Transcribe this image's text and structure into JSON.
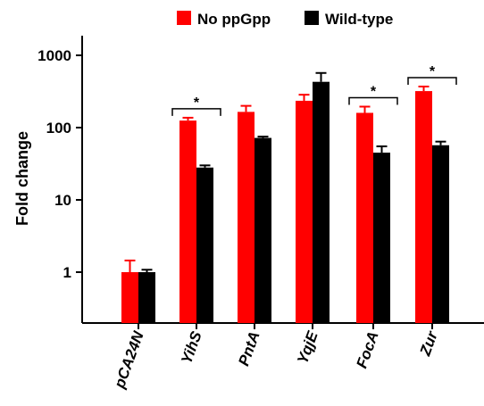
{
  "chart_data": {
    "type": "bar",
    "ylabel": "Fold change",
    "xlabel": "",
    "yscale": "log",
    "ylim": [
      0.2,
      2500
    ],
    "yticks": [
      {
        "value": 1,
        "label": "1"
      },
      {
        "value": 10,
        "label": "10"
      },
      {
        "value": 100,
        "label": "100"
      },
      {
        "value": 1000,
        "label": "1000"
      }
    ],
    "categories": [
      "pCA24N",
      "YihS",
      "PntA",
      "YqjE",
      "FocA",
      "Zur"
    ],
    "series": [
      {
        "name": "No ppGpp",
        "color": "#ff0000",
        "values": [
          1.0,
          125,
          165,
          235,
          160,
          320
        ],
        "errors": [
          0.45,
          12,
          35,
          50,
          35,
          50
        ]
      },
      {
        "name": "Wild-type",
        "color": "#000000",
        "values": [
          1.0,
          28,
          72,
          430,
          45,
          57
        ],
        "errors": [
          0.08,
          2,
          3,
          140,
          10,
          7
        ]
      }
    ],
    "significance": [
      {
        "category": "YihS",
        "label": "*"
      },
      {
        "category": "FocA",
        "label": "*"
      },
      {
        "category": "Zur",
        "label": "*"
      }
    ],
    "legend": {
      "position": "top"
    },
    "grid": false
  }
}
